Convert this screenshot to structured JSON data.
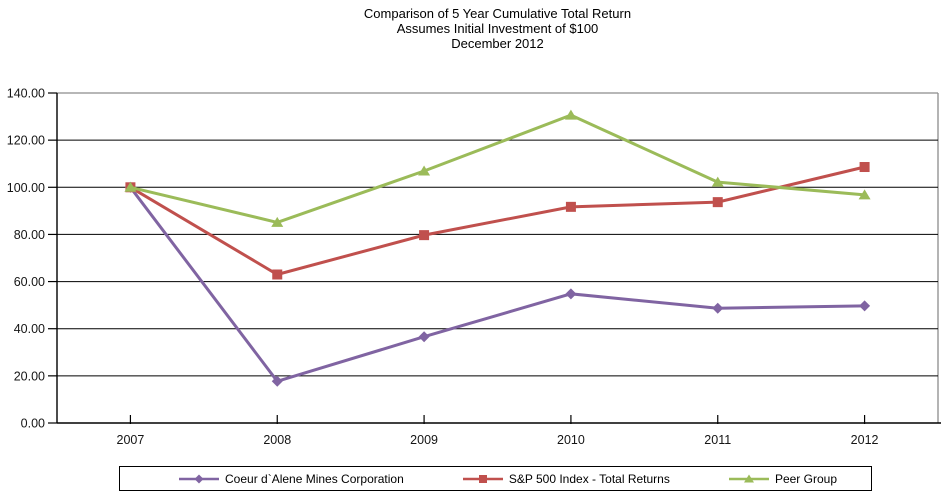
{
  "page": {
    "background_color": "#FFFFFF"
  },
  "chart_data": {
    "type": "line",
    "title_lines": [
      "Comparison of 5 Year Cumulative Total Return",
      "Assumes Initial Investment of $100",
      "December 2012"
    ],
    "categories": [
      "2007",
      "2008",
      "2009",
      "2010",
      "2011",
      "2012"
    ],
    "series": [
      {
        "name": "Coeur d`Alene Mines Corporation",
        "color": "#8064A2",
        "marker": "diamond",
        "values": [
          100.0,
          17.7,
          36.6,
          54.8,
          48.7,
          49.7
        ]
      },
      {
        "name": "S&P 500 Index - Total Returns",
        "color": "#C0504D",
        "marker": "square",
        "values": [
          100.0,
          63.0,
          79.7,
          91.7,
          93.7,
          108.6
        ]
      },
      {
        "name": "Peer Group",
        "color": "#9BBB59",
        "marker": "triangle",
        "values": [
          100.0,
          85.1,
          106.9,
          130.6,
          102.2,
          96.8
        ]
      }
    ],
    "ylim": [
      0,
      140
    ],
    "ytick_step": 20,
    "ytick_labels": [
      "0.00",
      "20.00",
      "40.00",
      "60.00",
      "80.00",
      "100.00",
      "120.00",
      "140.00"
    ],
    "grid": true,
    "legend_position": "bottom",
    "colors": {
      "gridline": "#000000",
      "axis": "#000000",
      "plot_border": "#8C8C8C",
      "legend_border": "#000000",
      "text": "#000000"
    }
  }
}
